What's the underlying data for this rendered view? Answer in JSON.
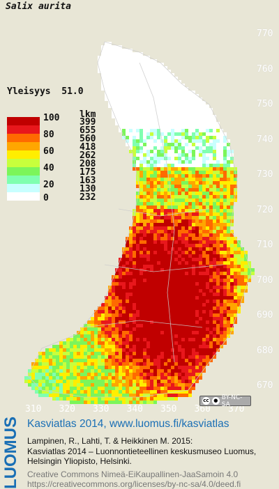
{
  "species": "Salix aurita",
  "frequency_label": "Yleisyys",
  "frequency_value": "51.0",
  "legend": {
    "count_header": "lkm",
    "classes": [
      {
        "percent": "100",
        "count": "399",
        "color": "#c00000"
      },
      {
        "percent": "",
        "count": "655",
        "color": "#e8171c"
      },
      {
        "percent": "80",
        "count": "560",
        "color": "#ff6a00"
      },
      {
        "percent": "",
        "count": "418",
        "color": "#ffa600"
      },
      {
        "percent": "60",
        "count": "262",
        "color": "#ffee00"
      },
      {
        "percent": "",
        "count": "208",
        "color": "#c8ff3c"
      },
      {
        "percent": "40",
        "count": "175",
        "color": "#7cf55a"
      },
      {
        "percent": "",
        "count": "163",
        "color": "#80ffb0"
      },
      {
        "percent": "20",
        "count": "130",
        "color": "#c8ffff"
      },
      {
        "percent": "0",
        "count": "232",
        "color": "#ffffff"
      }
    ]
  },
  "axes": {
    "y_ticks": [
      "770",
      "760",
      "750",
      "740",
      "730",
      "720",
      "710",
      "700",
      "690",
      "680",
      "670"
    ],
    "x_ticks": [
      "310",
      "320",
      "330",
      "340",
      "350",
      "360",
      "370"
    ]
  },
  "license_badge": "BY-NC-SA",
  "footer": {
    "logo": "LUOMUS",
    "title": "Kasviatlas 2014, www.luomus.fi/kasviatlas",
    "citation_1": "Lampinen, R., Lahti, T. & Heikkinen M. 2015:",
    "citation_2": "Kasviatlas 2014 – Luonnontieteellinen keskusmuseo Luomus,",
    "citation_3": "Helsingin Yliopisto, Helsinki.",
    "license_1": "Creative Commons Nimeä-EiKaupallinen-JaaSamoin 4.0",
    "license_2": "https://creativecommons.org/licenses/by-nc-sa/4.0/deed.fi"
  }
}
